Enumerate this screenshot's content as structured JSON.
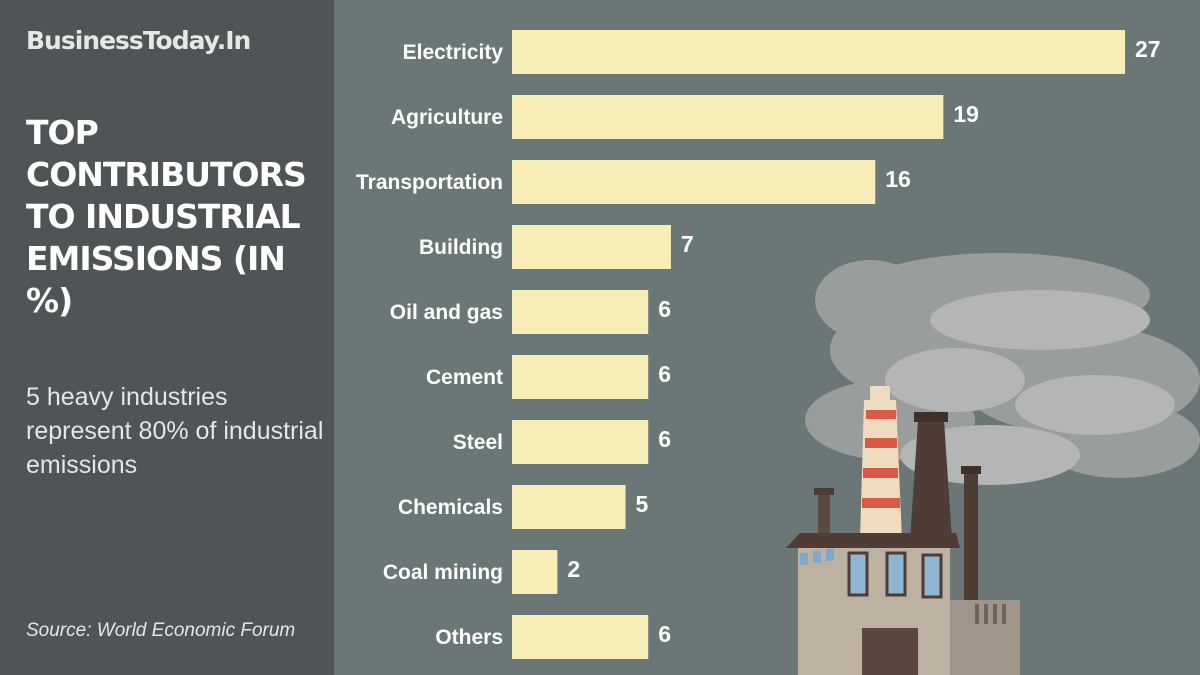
{
  "brand": "BusinessToday.In",
  "source": "Source: World Economic Forum",
  "colors": {
    "panel": "#4f5556",
    "background": "#6b7777",
    "bar": "#f6eeb6",
    "text": "#ffffff"
  },
  "chart_data": {
    "type": "bar",
    "orientation": "horizontal",
    "title": "TOP CONTRIBUTORS TO INDUSTRIAL EMISSIONS (IN %)",
    "subtitle": "5 heavy industries represent 80% of industrial emissions",
    "categories": [
      "Electricity",
      "Agriculture",
      "Transportation",
      "Building",
      "Oil and gas",
      "Cement",
      "Steel",
      "Chemicals",
      "Coal mining",
      "Others"
    ],
    "values": [
      27,
      19,
      16,
      7,
      6,
      6,
      6,
      5,
      2,
      6
    ],
    "xlim": [
      0,
      27
    ],
    "grid": false,
    "legend": "none"
  }
}
